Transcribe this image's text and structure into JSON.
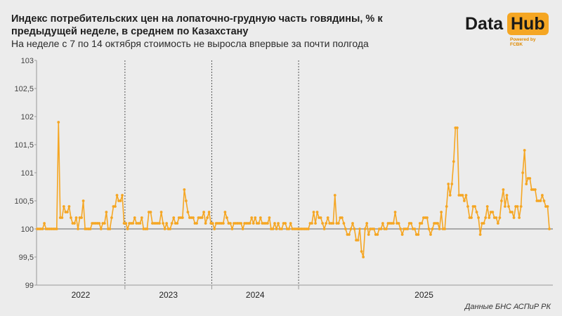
{
  "header": {
    "title": "Индекс потребительских цен на лопаточно-грудную часть говядины, % к предыдущей неделе, в среднем по Казахстану",
    "subtitle": "На неделе с 7 по 14 октября стоимость не выросла впервые за почти полгода"
  },
  "logo": {
    "data": "Data",
    "hub": "Hub",
    "powered": "Powered by FCBK"
  },
  "source": "Данные БНС АСПиР РК",
  "colors": {
    "line": "#f5a623",
    "background": "#ececec",
    "axis": "#999999"
  },
  "chart_data": {
    "type": "line",
    "title": "Индекс потребительских цен на лопаточно-грудную часть говядины, % к предыдущей неделе, в среднем по Казахстану",
    "xlabel": "",
    "ylabel": "",
    "ylim": [
      99,
      103
    ],
    "yticks": [
      "99",
      "99,5",
      "100",
      "100,5",
      "101",
      "101,5",
      "102",
      "102,5",
      "103"
    ],
    "year_labels": [
      "2022",
      "2023",
      "2024",
      "2025"
    ],
    "year_dividers_after_week": [
      49,
      98,
      147
    ],
    "grid": false,
    "values": [
      100,
      100,
      100,
      100,
      100.1,
      100,
      100,
      100,
      100,
      100,
      100,
      100,
      101.9,
      100.2,
      100.2,
      100.4,
      100.3,
      100.3,
      100.4,
      100.2,
      100.1,
      100.1,
      100.2,
      100,
      100.2,
      100.2,
      100.5,
      100,
      100,
      100,
      100,
      100.1,
      100.1,
      100.1,
      100.1,
      100.1,
      100,
      100.1,
      100.1,
      100.3,
      100,
      100,
      100.2,
      100.4,
      100.4,
      100.6,
      100.5,
      100.5,
      100.6,
      100.1,
      100.1,
      100,
      100.1,
      100.1,
      100.1,
      100.2,
      100.1,
      100.1,
      100.1,
      100.2,
      100,
      100,
      100,
      100.3,
      100.3,
      100.1,
      100.1,
      100.1,
      100.1,
      100.1,
      100.3,
      100.1,
      100,
      100.1,
      100,
      100,
      100.1,
      100.2,
      100.1,
      100.1,
      100.2,
      100.2,
      100.2,
      100.7,
      100.5,
      100.3,
      100.2,
      100.2,
      100.2,
      100.1,
      100.1,
      100.2,
      100.2,
      100.2,
      100.3,
      100.1,
      100.2,
      100.3,
      100.1,
      100.1,
      100,
      100.1,
      100.1,
      100.1,
      100.1,
      100.1,
      100.3,
      100.2,
      100.1,
      100.1,
      100,
      100.1,
      100.1,
      100.1,
      100.1,
      100.1,
      100,
      100.1,
      100.1,
      100.1,
      100.1,
      100.2,
      100.1,
      100.2,
      100.1,
      100.1,
      100.2,
      100.1,
      100.1,
      100.1,
      100.1,
      100.2,
      100,
      100,
      100.1,
      100,
      100.1,
      100,
      100,
      100.1,
      100.1,
      100,
      100,
      100.1,
      100,
      100,
      100,
      100,
      100,
      100,
      100,
      100,
      100,
      100,
      100.1,
      100.1,
      100.3,
      100.1,
      100.3,
      100.2,
      100.2,
      100.1,
      100,
      100.1,
      100.2,
      100.1,
      100.1,
      100.1,
      100.6,
      100.1,
      100.1,
      100.2,
      100.2,
      100.1,
      100,
      99.9,
      99.9,
      100,
      100.1,
      100,
      99.8,
      99.8,
      100,
      99.6,
      99.5,
      100,
      100.1,
      99.9,
      100,
      100,
      100,
      99.9,
      99.9,
      100,
      100,
      100.1,
      100,
      100,
      100.1,
      100.1,
      100.1,
      100.1,
      100.3,
      100.1,
      100.1,
      100,
      99.9,
      100,
      100,
      100,
      100.1,
      100.1,
      100,
      100,
      99.9,
      99.9,
      100.1,
      100.1,
      100.2,
      100.2,
      100.2,
      100,
      99.9,
      100,
      100.1,
      100.1,
      100.1,
      100,
      100.3,
      100,
      100,
      100.4,
      100.8,
      100.6,
      100.8,
      101.2,
      101.8,
      101.8,
      100.6,
      100.6,
      100.6,
      100.5,
      100.6,
      100.4,
      100.2,
      100.2,
      100.4,
      100.4,
      100.3,
      100.2,
      99.9,
      100.1,
      100.1,
      100.2,
      100.4,
      100.2,
      100.3,
      100.3,
      100.2,
      100.2,
      100.1,
      100.2,
      100.5,
      100.7,
      100.4,
      100.6,
      100.4,
      100.3,
      100.3,
      100.2,
      100.4,
      100.4,
      100.2,
      100.4,
      101,
      101.4,
      100.8,
      100.9,
      100.9,
      100.7,
      100.7,
      100.7,
      100.5,
      100.5,
      100.5,
      100.6,
      100.5,
      100.4,
      100.4,
      100
    ]
  }
}
